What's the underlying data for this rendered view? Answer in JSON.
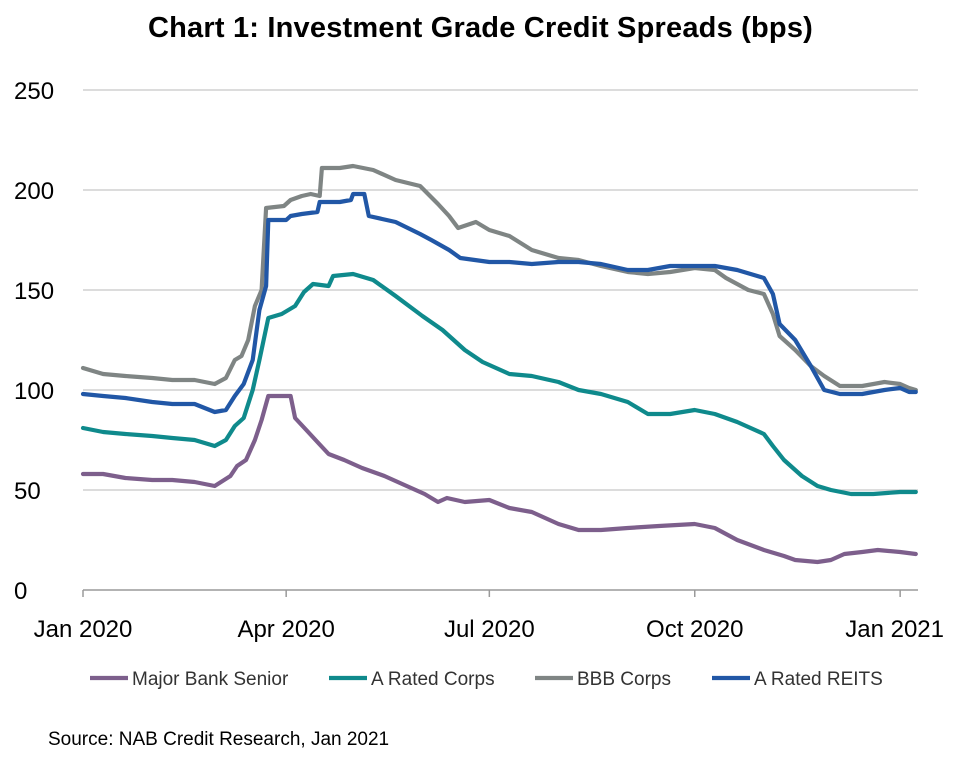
{
  "chart_data": {
    "type": "line",
    "title": "Chart 1: Investment Grade Credit Spreads (bps)",
    "source": "Source: NAB Credit Research, Jan 2021",
    "ylim": [
      0,
      250
    ],
    "y_ticks": [
      "0",
      "50",
      "100",
      "150",
      "200",
      "250"
    ],
    "x_ticks": [
      "Jan 2020",
      "Apr 2020",
      "Jul 2020",
      "Oct 2020",
      "Jan 2021"
    ],
    "x_tick_dates": [
      "2020-01-01",
      "2020-04-01",
      "2020-07-01",
      "2020-10-01",
      "2021-01-01"
    ],
    "xlim": [
      "2020-01-01",
      "2021-01-09"
    ],
    "grid": "horizontal",
    "legend_position": "bottom",
    "series": [
      {
        "name": "Major Bank Senior",
        "color": "#7d5f8c",
        "points": [
          [
            "2020-01-01",
            58
          ],
          [
            "2020-01-10",
            58
          ],
          [
            "2020-01-20",
            56
          ],
          [
            "2020-02-01",
            55
          ],
          [
            "2020-02-10",
            55
          ],
          [
            "2020-02-20",
            54
          ],
          [
            "2020-02-29",
            52
          ],
          [
            "2020-03-07",
            57
          ],
          [
            "2020-03-10",
            62
          ],
          [
            "2020-03-14",
            65
          ],
          [
            "2020-03-18",
            75
          ],
          [
            "2020-03-21",
            85
          ],
          [
            "2020-03-24",
            97
          ],
          [
            "2020-03-29",
            97
          ],
          [
            "2020-04-03",
            97
          ],
          [
            "2020-04-05",
            86
          ],
          [
            "2020-04-10",
            80
          ],
          [
            "2020-04-15",
            74
          ],
          [
            "2020-04-20",
            68
          ],
          [
            "2020-04-27",
            65
          ],
          [
            "2020-05-05",
            61
          ],
          [
            "2020-05-15",
            57
          ],
          [
            "2020-05-25",
            52
          ],
          [
            "2020-06-02",
            48
          ],
          [
            "2020-06-08",
            44
          ],
          [
            "2020-06-12",
            46
          ],
          [
            "2020-06-20",
            44
          ],
          [
            "2020-07-01",
            45
          ],
          [
            "2020-07-10",
            41
          ],
          [
            "2020-07-20",
            39
          ],
          [
            "2020-08-01",
            33
          ],
          [
            "2020-08-10",
            30
          ],
          [
            "2020-08-20",
            30
          ],
          [
            "2020-09-01",
            31
          ],
          [
            "2020-09-15",
            32
          ],
          [
            "2020-10-01",
            33
          ],
          [
            "2020-10-10",
            31
          ],
          [
            "2020-10-20",
            25
          ],
          [
            "2020-11-01",
            20
          ],
          [
            "2020-11-10",
            17
          ],
          [
            "2020-11-15",
            15
          ],
          [
            "2020-11-25",
            14
          ],
          [
            "2020-12-01",
            15
          ],
          [
            "2020-12-07",
            18
          ],
          [
            "2020-12-15",
            19
          ],
          [
            "2020-12-22",
            20
          ],
          [
            "2021-01-01",
            19
          ],
          [
            "2021-01-08",
            18
          ]
        ]
      },
      {
        "name": "A Rated Corps",
        "color": "#0f8a8c",
        "points": [
          [
            "2020-01-01",
            81
          ],
          [
            "2020-01-10",
            79
          ],
          [
            "2020-01-20",
            78
          ],
          [
            "2020-02-01",
            77
          ],
          [
            "2020-02-10",
            76
          ],
          [
            "2020-02-20",
            75
          ],
          [
            "2020-02-29",
            72
          ],
          [
            "2020-03-05",
            75
          ],
          [
            "2020-03-09",
            82
          ],
          [
            "2020-03-13",
            86
          ],
          [
            "2020-03-17",
            100
          ],
          [
            "2020-03-20",
            115
          ],
          [
            "2020-03-24",
            136
          ],
          [
            "2020-03-30",
            138
          ],
          [
            "2020-04-05",
            142
          ],
          [
            "2020-04-09",
            149
          ],
          [
            "2020-04-13",
            153
          ],
          [
            "2020-04-20",
            152
          ],
          [
            "2020-04-22",
            157
          ],
          [
            "2020-05-01",
            158
          ],
          [
            "2020-05-10",
            155
          ],
          [
            "2020-05-20",
            147
          ],
          [
            "2020-06-01",
            137
          ],
          [
            "2020-06-10",
            130
          ],
          [
            "2020-06-20",
            120
          ],
          [
            "2020-06-28",
            114
          ],
          [
            "2020-07-10",
            108
          ],
          [
            "2020-07-20",
            107
          ],
          [
            "2020-08-01",
            104
          ],
          [
            "2020-08-10",
            100
          ],
          [
            "2020-08-20",
            98
          ],
          [
            "2020-09-01",
            94
          ],
          [
            "2020-09-10",
            88
          ],
          [
            "2020-09-20",
            88
          ],
          [
            "2020-10-01",
            90
          ],
          [
            "2020-10-10",
            88
          ],
          [
            "2020-10-20",
            84
          ],
          [
            "2020-11-01",
            78
          ],
          [
            "2020-11-05",
            72
          ],
          [
            "2020-11-10",
            65
          ],
          [
            "2020-11-18",
            57
          ],
          [
            "2020-11-25",
            52
          ],
          [
            "2020-12-01",
            50
          ],
          [
            "2020-12-10",
            48
          ],
          [
            "2020-12-20",
            48
          ],
          [
            "2021-01-01",
            49
          ],
          [
            "2021-01-08",
            49
          ]
        ]
      },
      {
        "name": "BBB Corps",
        "color": "#7f8584",
        "points": [
          [
            "2020-01-01",
            111
          ],
          [
            "2020-01-10",
            108
          ],
          [
            "2020-01-20",
            107
          ],
          [
            "2020-02-01",
            106
          ],
          [
            "2020-02-10",
            105
          ],
          [
            "2020-02-20",
            105
          ],
          [
            "2020-02-29",
            103
          ],
          [
            "2020-03-05",
            106
          ],
          [
            "2020-03-09",
            115
          ],
          [
            "2020-03-12",
            117
          ],
          [
            "2020-03-15",
            125
          ],
          [
            "2020-03-18",
            142
          ],
          [
            "2020-03-21",
            150
          ],
          [
            "2020-03-23",
            191
          ],
          [
            "2020-03-31",
            192
          ],
          [
            "2020-04-03",
            195
          ],
          [
            "2020-04-08",
            197
          ],
          [
            "2020-04-12",
            198
          ],
          [
            "2020-04-16",
            197
          ],
          [
            "2020-04-17",
            211
          ],
          [
            "2020-04-25",
            211
          ],
          [
            "2020-05-01",
            212
          ],
          [
            "2020-05-10",
            210
          ],
          [
            "2020-05-20",
            205
          ],
          [
            "2020-05-31",
            202
          ],
          [
            "2020-06-08",
            193
          ],
          [
            "2020-06-13",
            187
          ],
          [
            "2020-06-17",
            181
          ],
          [
            "2020-06-25",
            184
          ],
          [
            "2020-07-01",
            180
          ],
          [
            "2020-07-10",
            177
          ],
          [
            "2020-07-20",
            170
          ],
          [
            "2020-08-01",
            166
          ],
          [
            "2020-08-10",
            165
          ],
          [
            "2020-08-20",
            162
          ],
          [
            "2020-09-01",
            159
          ],
          [
            "2020-09-10",
            158
          ],
          [
            "2020-09-20",
            159
          ],
          [
            "2020-10-01",
            161
          ],
          [
            "2020-10-10",
            160
          ],
          [
            "2020-10-15",
            156
          ],
          [
            "2020-10-25",
            150
          ],
          [
            "2020-11-01",
            148
          ],
          [
            "2020-11-05",
            138
          ],
          [
            "2020-11-08",
            127
          ],
          [
            "2020-11-15",
            120
          ],
          [
            "2020-11-22",
            112
          ],
          [
            "2020-11-28",
            107
          ],
          [
            "2020-12-05",
            102
          ],
          [
            "2020-12-15",
            102
          ],
          [
            "2020-12-25",
            104
          ],
          [
            "2021-01-01",
            103
          ],
          [
            "2021-01-05",
            101
          ],
          [
            "2021-01-08",
            100
          ]
        ]
      },
      {
        "name": "A Rated REITS",
        "color": "#2157a6",
        "points": [
          [
            "2020-01-01",
            98
          ],
          [
            "2020-01-10",
            97
          ],
          [
            "2020-01-20",
            96
          ],
          [
            "2020-02-01",
            94
          ],
          [
            "2020-02-10",
            93
          ],
          [
            "2020-02-20",
            93
          ],
          [
            "2020-02-29",
            89
          ],
          [
            "2020-03-05",
            90
          ],
          [
            "2020-03-09",
            97
          ],
          [
            "2020-03-13",
            103
          ],
          [
            "2020-03-17",
            115
          ],
          [
            "2020-03-20",
            140
          ],
          [
            "2020-03-23",
            152
          ],
          [
            "2020-03-24",
            185
          ],
          [
            "2020-04-01",
            185
          ],
          [
            "2020-04-03",
            187
          ],
          [
            "2020-04-08",
            188
          ],
          [
            "2020-04-15",
            189
          ],
          [
            "2020-04-16",
            194
          ],
          [
            "2020-04-25",
            194
          ],
          [
            "2020-04-30",
            195
          ],
          [
            "2020-05-01",
            198
          ],
          [
            "2020-05-06",
            198
          ],
          [
            "2020-05-08",
            187
          ],
          [
            "2020-05-20",
            184
          ],
          [
            "2020-05-31",
            178
          ],
          [
            "2020-06-05",
            175
          ],
          [
            "2020-06-13",
            170
          ],
          [
            "2020-06-18",
            166
          ],
          [
            "2020-07-01",
            164
          ],
          [
            "2020-07-10",
            164
          ],
          [
            "2020-07-20",
            163
          ],
          [
            "2020-08-01",
            164
          ],
          [
            "2020-08-10",
            164
          ],
          [
            "2020-08-20",
            163
          ],
          [
            "2020-09-01",
            160
          ],
          [
            "2020-09-10",
            160
          ],
          [
            "2020-09-20",
            162
          ],
          [
            "2020-10-01",
            162
          ],
          [
            "2020-10-10",
            162
          ],
          [
            "2020-10-20",
            160
          ],
          [
            "2020-11-01",
            156
          ],
          [
            "2020-11-05",
            148
          ],
          [
            "2020-11-08",
            133
          ],
          [
            "2020-11-15",
            125
          ],
          [
            "2020-11-22",
            112
          ],
          [
            "2020-11-28",
            100
          ],
          [
            "2020-12-05",
            98
          ],
          [
            "2020-12-15",
            98
          ],
          [
            "2020-12-25",
            100
          ],
          [
            "2021-01-01",
            101
          ],
          [
            "2021-01-05",
            99
          ],
          [
            "2021-01-08",
            99
          ]
        ]
      }
    ]
  }
}
